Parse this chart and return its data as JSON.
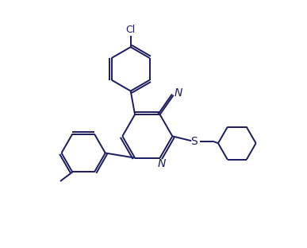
{
  "background_color": "#ffffff",
  "line_color": "#1a1a5e",
  "line_width": 1.4,
  "font_size": 9,
  "figsize": [
    3.87,
    3.12
  ],
  "dpi": 100,
  "xlim": [
    0,
    10
  ],
  "ylim": [
    0,
    8
  ]
}
